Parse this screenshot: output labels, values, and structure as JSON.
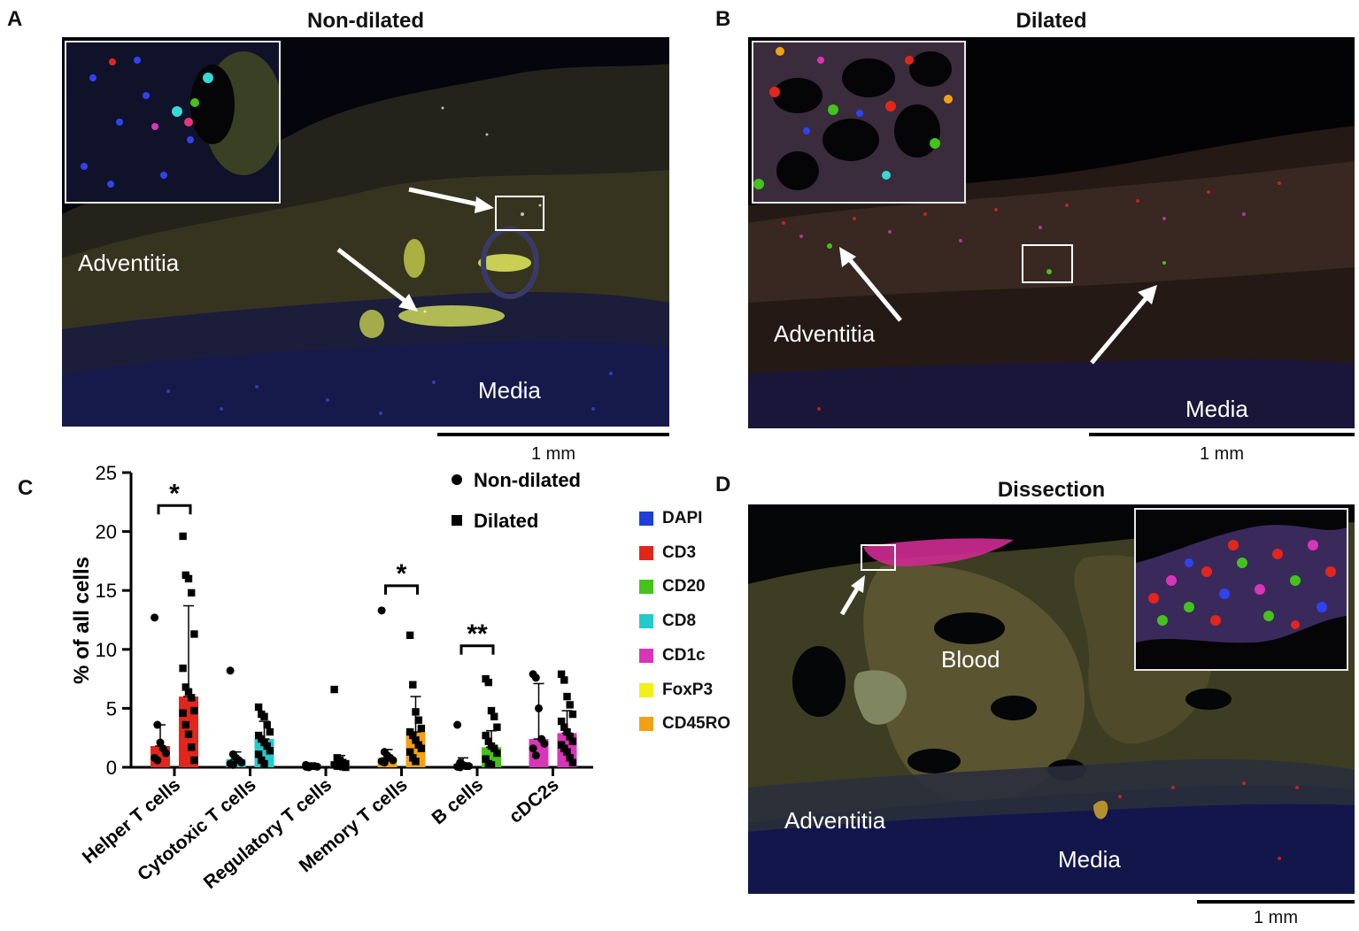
{
  "panels": {
    "a": {
      "letter": "A",
      "title": "Non-dilated",
      "labels": {
        "adventitia": "Adventitia",
        "media": "Media"
      },
      "scale": "1 mm"
    },
    "b": {
      "letter": "B",
      "title": "Dilated",
      "labels": {
        "adventitia": "Adventitia",
        "media": "Media"
      },
      "scale": "1 mm"
    },
    "c": {
      "letter": "C"
    },
    "d": {
      "letter": "D",
      "title": "Dissection",
      "labels": {
        "blood": "Blood",
        "adventitia": "Adventitia",
        "media": "Media"
      },
      "scale": "1 mm"
    }
  },
  "marker_legend": [
    {
      "label": "DAPI",
      "color": "#1f3fd6"
    },
    {
      "label": "CD3",
      "color": "#e3261c"
    },
    {
      "label": "CD20",
      "color": "#45c21b"
    },
    {
      "label": "CD8",
      "color": "#22cbc9"
    },
    {
      "label": "CD1c",
      "color": "#d935b8"
    },
    {
      "label": "FoxP3",
      "color": "#f2ef18"
    },
    {
      "label": "CD45RO",
      "color": "#f2a014"
    }
  ],
  "chart_data": {
    "type": "bar",
    "ylabel": "% of all cells",
    "ylim": [
      0,
      25
    ],
    "yticks": [
      0,
      5,
      10,
      15,
      20,
      25
    ],
    "categories": [
      "Helper T cells",
      "Cytotoxic T cells",
      "Regulatory T cells",
      "Memory T cells",
      "B cells",
      "cDC2s"
    ],
    "bar_colors": [
      "#e3261c",
      "#22cbc9",
      "#f2ef18",
      "#f2a014",
      "#45c21b",
      "#d935b8"
    ],
    "legend": {
      "placement": "top-right",
      "entries": [
        {
          "marker": "circle",
          "label": "Non-dilated"
        },
        {
          "marker": "square",
          "label": "Dilated"
        }
      ]
    },
    "series": [
      {
        "name": "Non-dilated",
        "marker": "circle",
        "means": [
          1.8,
          0.7,
          0.1,
          0.8,
          0.3,
          2.4
        ],
        "sd": [
          1.8,
          0.6,
          0.05,
          0.7,
          0.5,
          4.7
        ],
        "points": [
          [
            12.7,
            3.6,
            2.1,
            1.6,
            1.2,
            0.8,
            0.6
          ],
          [
            8.2,
            1.1,
            0.8,
            0.6,
            0.4,
            0.3,
            0.2
          ],
          [
            0.2,
            0.1,
            0.1,
            0.1,
            0.05,
            0.05,
            0.0
          ],
          [
            13.3,
            1.3,
            1.0,
            0.8,
            0.6,
            0.5,
            0.4
          ],
          [
            3.6,
            0.4,
            0.2,
            0.1,
            0.1,
            0.05,
            0.0
          ],
          [
            7.9,
            7.6,
            5.0,
            2.4,
            2.0,
            1.6,
            1.0
          ]
        ]
      },
      {
        "name": "Dilated",
        "marker": "square",
        "means": [
          6.0,
          2.4,
          0.3,
          3.0,
          1.7,
          2.9
        ],
        "sd": [
          7.7,
          1.5,
          0.7,
          3.0,
          1.4,
          1.9
        ],
        "points": [
          [
            19.6,
            16.3,
            16.0,
            14.8,
            11.3,
            8.4,
            6.8,
            6.4,
            5.9,
            4.8,
            4.6,
            3.6,
            2.8,
            1.7,
            0.6
          ],
          [
            5.1,
            4.5,
            4.3,
            3.6,
            3.0,
            2.7,
            2.4,
            2.1,
            1.8,
            1.4,
            1.1,
            0.6,
            0.3
          ],
          [
            6.6,
            0.8,
            0.6,
            0.4,
            0.3,
            0.2,
            0.1,
            0.1,
            0.05,
            0.0
          ],
          [
            11.2,
            7.0,
            4.7,
            4.0,
            3.3,
            3.0,
            2.7,
            2.3,
            1.9,
            1.6,
            1.3,
            0.8,
            0.5
          ],
          [
            7.5,
            7.2,
            4.8,
            4.3,
            3.4,
            2.7,
            2.2,
            1.8,
            1.6,
            1.2,
            0.7,
            0.3,
            0.2
          ],
          [
            7.9,
            7.4,
            6.0,
            5.3,
            4.5,
            3.9,
            3.4,
            3.0,
            2.6,
            2.2,
            1.9,
            1.6,
            1.3,
            0.8,
            0.4
          ]
        ]
      }
    ],
    "significance": [
      {
        "category": "Helper T cells",
        "label": "*",
        "y": 22.2
      },
      {
        "category": "Memory T cells",
        "label": "*",
        "y": 15.4
      },
      {
        "category": "B cells",
        "label": "**",
        "y": 10.3
      }
    ]
  }
}
